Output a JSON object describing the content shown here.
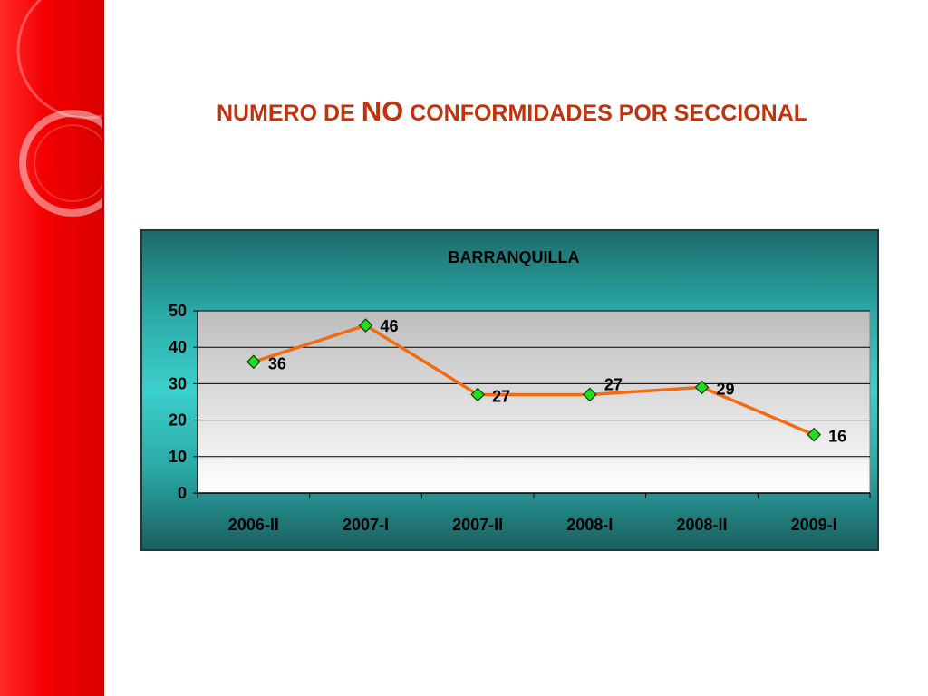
{
  "slide": {
    "title_part1": "NUMERO DE ",
    "title_part2": "NO",
    "title_part3": " CONFORMIDADES POR SECCIONAL"
  },
  "colors": {
    "band_red": "#f30000",
    "title": "#c0330c",
    "chart_bg": "#2aa8a6",
    "line": "#f26b12",
    "marker": "#22dd22"
  },
  "chart_data": {
    "type": "line",
    "title": "BARRANQUILLA",
    "categories": [
      "2006-II",
      "2007-I",
      "2007-II",
      "2008-I",
      "2008-II",
      "2009-I"
    ],
    "series": [
      {
        "values": [
          36,
          46,
          27,
          27,
          29,
          16
        ]
      }
    ],
    "data_labels": [
      "36",
      "46",
      "27",
      "27",
      "29",
      "16"
    ],
    "xlabel": "",
    "ylabel": "",
    "ylim": [
      0,
      50
    ],
    "yticks": [
      0,
      10,
      20,
      30,
      40,
      50
    ],
    "grid": true,
    "legend": "none"
  }
}
